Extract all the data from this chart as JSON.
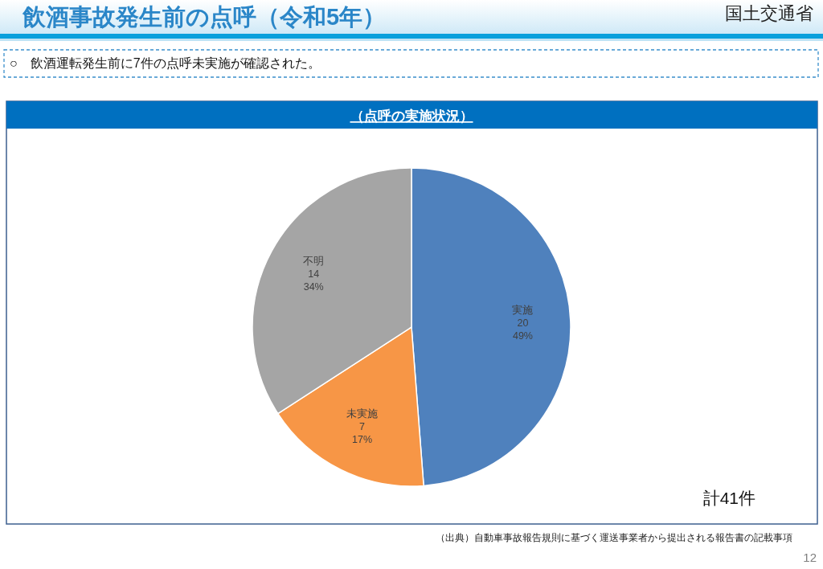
{
  "chart_data": {
    "type": "pie",
    "title": "飲酒事故発生前の点呼（令和5年）",
    "subtitle": "○　飲酒運転発生前に7件の点呼未実施が確認された。",
    "categories": [
      "実施",
      "未実施",
      "不明"
    ],
    "values": [
      20,
      7,
      14
    ],
    "colors": [
      "#4f81bd",
      "#f79646",
      "#a5a5a5"
    ],
    "value_labels": [
      "20\n49%",
      "7\n17%",
      "14\n34%"
    ],
    "annotations": [
      "（点呼の実施状況）",
      "計41件",
      "（出典）自動車事故報告規則に基づく運送事業者から提出される報告書の記載事項",
      "国土交通省",
      "12"
    ]
  }
}
